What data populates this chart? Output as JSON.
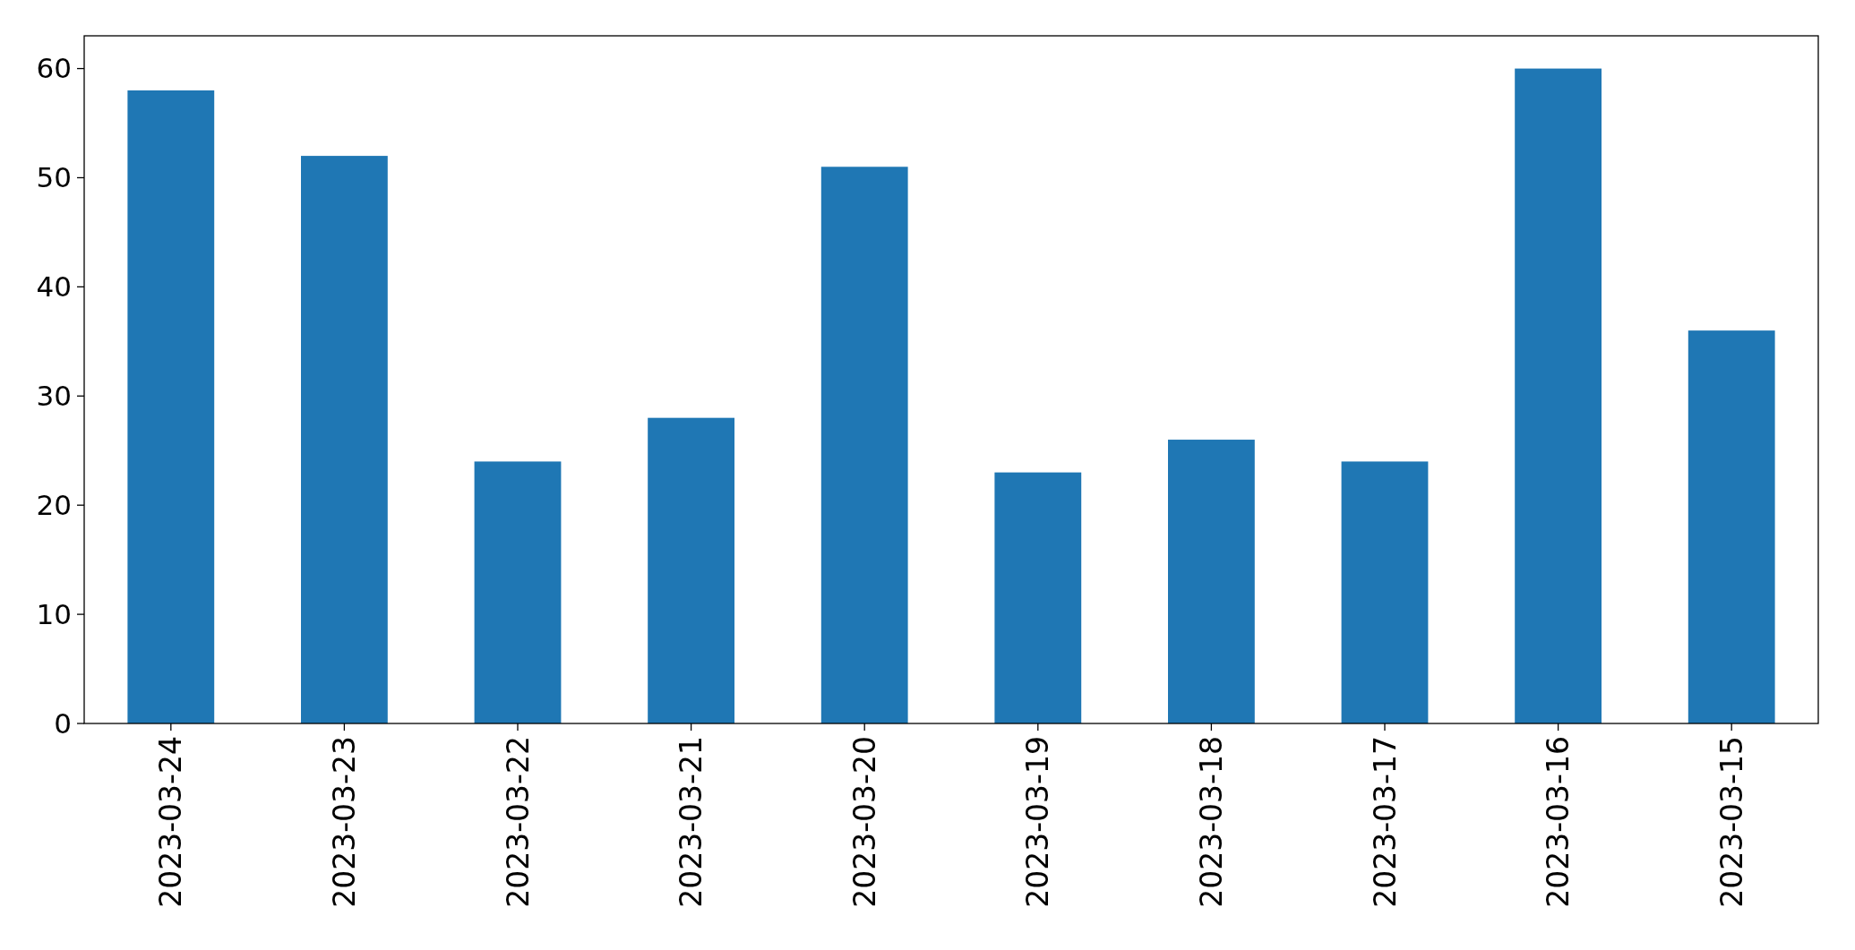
{
  "chart_data": {
    "type": "bar",
    "categories": [
      "2023-03-24",
      "2023-03-23",
      "2023-03-22",
      "2023-03-21",
      "2023-03-20",
      "2023-03-19",
      "2023-03-18",
      "2023-03-17",
      "2023-03-16",
      "2023-03-15"
    ],
    "values": [
      58,
      52,
      24,
      28,
      51,
      23,
      26,
      24,
      60,
      36
    ],
    "color": "#1f77b4",
    "ylim": [
      0,
      63
    ],
    "yticks": [
      0,
      10,
      20,
      30,
      40,
      50,
      60
    ]
  }
}
